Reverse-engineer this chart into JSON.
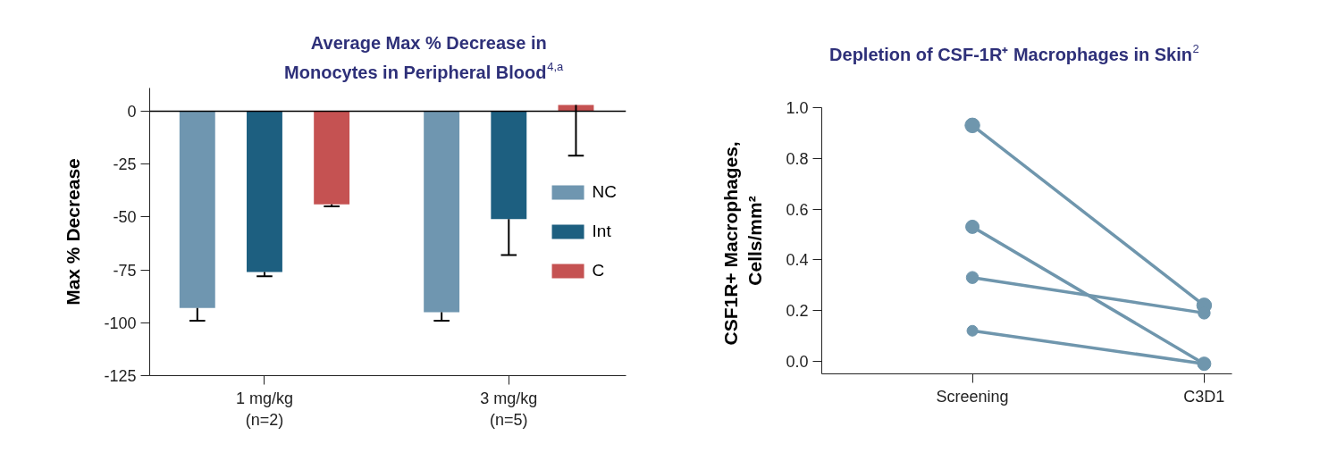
{
  "chart_data": [
    {
      "type": "bar",
      "title": "Average Max % Decrease in\nMonocytes in Peripheral Blood$^{4,a}$",
      "ylabel": "Max % Decrease",
      "categories": [
        "1 mg/kg\n(n=2)",
        "3 mg/kg\n(n=5)"
      ],
      "series": [
        {
          "name": "NC",
          "color": "#6f96b0",
          "values": [
            -93,
            -95
          ],
          "errors": [
            [
              -99,
              -93
            ],
            [
              -99,
              -95
            ]
          ]
        },
        {
          "name": "Int",
          "color": "#1d5f80",
          "values": [
            -76,
            -51
          ],
          "errors": [
            [
              -78,
              -76
            ],
            [
              -68,
              -51
            ]
          ]
        },
        {
          "name": "C",
          "color": "#c55252",
          "values": [
            -44,
            3
          ],
          "errors": [
            [
              -45,
              -44
            ],
            [
              -21,
              3
            ]
          ]
        }
      ],
      "ylim": [
        -125,
        11
      ],
      "yticks": [
        0,
        -25,
        -50,
        -75,
        -100,
        -125
      ],
      "ref_lines": [
        {
          "axis": "y",
          "value": 0,
          "color": "#000000"
        }
      ],
      "legend": "right",
      "grid": false
    },
    {
      "type": "line",
      "title": "Depletion of CSF-1R⁺ Macrophages in Skin$^{2}$",
      "ylabel": "CSF1R+  Macrophages,\nCells/mm²",
      "categories": [
        "Screening",
        "C3D1"
      ],
      "series": [
        {
          "color": "#6f96ad",
          "values": [
            0.93,
            0.22
          ]
        },
        {
          "color": "#6f96ad",
          "values": [
            0.53,
            -0.01
          ]
        },
        {
          "color": "#6f96ad",
          "values": [
            0.33,
            0.19
          ]
        },
        {
          "color": "#6f96ad",
          "values": [
            0.12,
            -0.01
          ]
        }
      ],
      "ylim": [
        -0.05,
        1.0
      ],
      "yticks": [
        {
          "value": 0,
          "label": "0.0"
        },
        {
          "value": 0.2,
          "label": "0.2"
        },
        {
          "value": 0.4,
          "label": "0.4"
        },
        {
          "value": 0.6,
          "label": "0.6"
        },
        {
          "value": 0.8,
          "label": "0.8"
        },
        {
          "value": 1.0,
          "label": "1.0"
        }
      ],
      "marker": "circle",
      "line_style": "solid",
      "grid": false
    }
  ]
}
